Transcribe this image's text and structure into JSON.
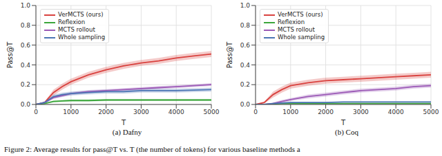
{
  "chart_data": [
    {
      "type": "line",
      "title": "(a) Dafny",
      "x_label": "T",
      "y_label": "Pass@T",
      "x": [
        0,
        250,
        500,
        750,
        1000,
        1500,
        2000,
        2500,
        3000,
        3500,
        4000,
        4500,
        5000
      ],
      "xlim": [
        0,
        5000
      ],
      "xticks": [
        0,
        1000,
        2000,
        3000,
        4000,
        5000
      ],
      "ylim": [
        0,
        1
      ],
      "yticks": [
        {
          "value": 0,
          "label": "0.0"
        },
        0.2,
        0.4,
        0.6,
        0.8,
        {
          "value": 1,
          "label": "1.0"
        }
      ],
      "grid": true,
      "legend": "upper left",
      "series": [
        {
          "name": "VerMCTS (ours)",
          "color": "#d9413e",
          "values": [
            0,
            0.02,
            0.12,
            0.18,
            0.23,
            0.3,
            0.35,
            0.39,
            0.42,
            0.44,
            0.47,
            0.49,
            0.51
          ],
          "lower": [
            0,
            0.01,
            0.09,
            0.15,
            0.2,
            0.27,
            0.32,
            0.36,
            0.39,
            0.41,
            0.44,
            0.46,
            0.48
          ],
          "upper": [
            0,
            0.03,
            0.15,
            0.21,
            0.26,
            0.33,
            0.38,
            0.42,
            0.45,
            0.47,
            0.5,
            0.52,
            0.54
          ]
        },
        {
          "name": "Reflexion",
          "color": "#3aa63a",
          "values": [
            0,
            0.01,
            0.03,
            0.035,
            0.04,
            0.04,
            0.045,
            0.045,
            0.045,
            0.045,
            0.045,
            0.045,
            0.045
          ],
          "lower": [
            0,
            0.005,
            0.02,
            0.025,
            0.03,
            0.03,
            0.035,
            0.035,
            0.035,
            0.035,
            0.035,
            0.035,
            0.035
          ],
          "upper": [
            0,
            0.015,
            0.04,
            0.045,
            0.05,
            0.05,
            0.055,
            0.055,
            0.055,
            0.055,
            0.055,
            0.055,
            0.055
          ]
        },
        {
          "name": "MCTS rollout",
          "color": "#9b59b6",
          "values": [
            0,
            0.02,
            0.07,
            0.09,
            0.11,
            0.13,
            0.14,
            0.15,
            0.16,
            0.17,
            0.18,
            0.19,
            0.2
          ],
          "lower": [
            0,
            0.01,
            0.055,
            0.075,
            0.095,
            0.115,
            0.125,
            0.135,
            0.145,
            0.155,
            0.165,
            0.175,
            0.185
          ],
          "upper": [
            0,
            0.03,
            0.085,
            0.105,
            0.125,
            0.145,
            0.155,
            0.165,
            0.175,
            0.185,
            0.195,
            0.205,
            0.215
          ]
        },
        {
          "name": "Whole sampling",
          "color": "#4a74b4",
          "values": [
            0,
            0.02,
            0.08,
            0.1,
            0.11,
            0.12,
            0.13,
            0.13,
            0.14,
            0.14,
            0.14,
            0.145,
            0.15
          ],
          "lower": [
            0,
            0.01,
            0.06,
            0.08,
            0.09,
            0.1,
            0.11,
            0.11,
            0.12,
            0.12,
            0.12,
            0.125,
            0.13
          ],
          "upper": [
            0,
            0.03,
            0.1,
            0.12,
            0.13,
            0.14,
            0.15,
            0.15,
            0.16,
            0.16,
            0.16,
            0.165,
            0.17
          ]
        }
      ]
    },
    {
      "type": "line",
      "title": "(b) Coq",
      "x_label": "T",
      "y_label": "Pass@T",
      "x": [
        0,
        250,
        500,
        750,
        1000,
        1500,
        2000,
        2500,
        3000,
        3500,
        4000,
        4500,
        5000
      ],
      "xlim": [
        0,
        5000
      ],
      "xticks": [
        0,
        1000,
        2000,
        3000,
        4000,
        5000
      ],
      "ylim": [
        0,
        1
      ],
      "yticks": [
        {
          "value": 0,
          "label": "0.0"
        },
        0.2,
        0.4,
        0.6,
        0.8,
        {
          "value": 1,
          "label": "1.0"
        }
      ],
      "grid": true,
      "legend": "upper left",
      "series": [
        {
          "name": "VerMCTS (ours)",
          "color": "#d9413e",
          "values": [
            0,
            0.02,
            0.1,
            0.15,
            0.19,
            0.22,
            0.24,
            0.25,
            0.26,
            0.27,
            0.28,
            0.29,
            0.3
          ],
          "lower": [
            0,
            0.01,
            0.07,
            0.12,
            0.16,
            0.19,
            0.21,
            0.22,
            0.23,
            0.24,
            0.25,
            0.26,
            0.27
          ],
          "upper": [
            0,
            0.03,
            0.13,
            0.18,
            0.22,
            0.25,
            0.27,
            0.28,
            0.29,
            0.3,
            0.31,
            0.32,
            0.33
          ]
        },
        {
          "name": "Reflexion",
          "color": "#3aa63a",
          "values": [
            0,
            0,
            0.005,
            0.01,
            0.01,
            0.01,
            0.01,
            0.01,
            0.01,
            0.01,
            0.01,
            0.01,
            0.01
          ],
          "lower": [
            0,
            0,
            0,
            0.005,
            0.005,
            0.005,
            0.005,
            0.005,
            0.005,
            0.005,
            0.005,
            0.005,
            0.005
          ],
          "upper": [
            0,
            0,
            0.01,
            0.015,
            0.015,
            0.015,
            0.015,
            0.015,
            0.015,
            0.015,
            0.015,
            0.015,
            0.015
          ]
        },
        {
          "name": "MCTS rollout",
          "color": "#9b59b6",
          "values": [
            0,
            0,
            0.01,
            0.03,
            0.05,
            0.08,
            0.1,
            0.12,
            0.14,
            0.15,
            0.16,
            0.18,
            0.19
          ],
          "lower": [
            0,
            0,
            0,
            0.015,
            0.035,
            0.06,
            0.08,
            0.1,
            0.12,
            0.13,
            0.14,
            0.16,
            0.17
          ],
          "upper": [
            0,
            0,
            0.02,
            0.045,
            0.065,
            0.1,
            0.12,
            0.14,
            0.16,
            0.17,
            0.18,
            0.2,
            0.21
          ]
        },
        {
          "name": "Whole sampling",
          "color": "#4a74b4",
          "values": [
            0,
            0,
            0.01,
            0.015,
            0.02,
            0.02,
            0.02,
            0.025,
            0.025,
            0.025,
            0.025,
            0.025,
            0.025
          ],
          "lower": [
            0,
            0,
            0.005,
            0.01,
            0.015,
            0.015,
            0.015,
            0.02,
            0.02,
            0.02,
            0.02,
            0.02,
            0.02
          ],
          "upper": [
            0,
            0,
            0.015,
            0.02,
            0.025,
            0.025,
            0.025,
            0.03,
            0.03,
            0.03,
            0.03,
            0.03,
            0.03
          ]
        }
      ]
    }
  ],
  "caption": "Figure 2: Average results for pass@T vs. T (the number of tokens) for various baseline methods a"
}
